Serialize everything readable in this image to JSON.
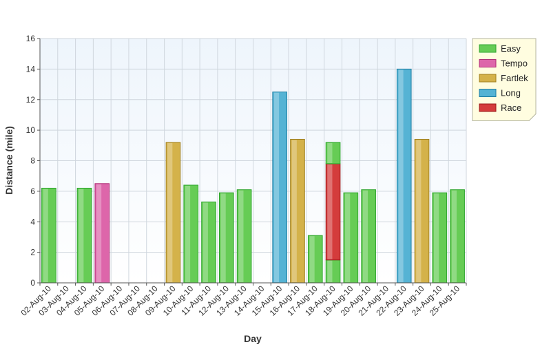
{
  "chart_data": {
    "type": "bar",
    "stacked": true,
    "title": "",
    "xlabel": "Day",
    "ylabel": "Distance (mile)",
    "ylim": [
      0,
      16
    ],
    "yticks": [
      0,
      2,
      4,
      6,
      8,
      10,
      12,
      14,
      16
    ],
    "grid": true,
    "legend_position": "top-right",
    "categories": [
      "02-Aug-10",
      "03-Aug-10",
      "04-Aug-10",
      "05-Aug-10",
      "06-Aug-10",
      "07-Aug-10",
      "08-Aug-10",
      "09-Aug-10",
      "10-Aug-10",
      "11-Aug-10",
      "12-Aug-10",
      "13-Aug-10",
      "14-Aug-10",
      "15-Aug-10",
      "16-Aug-10",
      "17-Aug-10",
      "18-Aug-10",
      "19-Aug-10",
      "20-Aug-10",
      "21-Aug-10",
      "22-Aug-10",
      "23-Aug-10",
      "24-Aug-10",
      "25-Aug-10"
    ],
    "series": [
      {
        "name": "Easy",
        "color": "#66cc55",
        "edge": "#2ea52e",
        "values": [
          6.2,
          0,
          6.2,
          0,
          0,
          0,
          0,
          0,
          6.4,
          5.3,
          5.9,
          6.1,
          0,
          0,
          0,
          3.1,
          1.5,
          5.9,
          6.1,
          0,
          0,
          0,
          5.9,
          6.1
        ]
      },
      {
        "name": "Tempo",
        "color": "#dd66aa",
        "edge": "#b02a75",
        "values": [
          0,
          0,
          0,
          6.5,
          0,
          0,
          0,
          0,
          0,
          0,
          0,
          0,
          0,
          0,
          0,
          0,
          0,
          0,
          0,
          0,
          0,
          0,
          0,
          0
        ]
      },
      {
        "name": "Fartlek",
        "color": "#d4b24a",
        "edge": "#a08020",
        "values": [
          0,
          0,
          0,
          0,
          0,
          0,
          0,
          9.2,
          0,
          0,
          0,
          0,
          0,
          0,
          9.4,
          0,
          0,
          0,
          0,
          0,
          0,
          9.4,
          0,
          0
        ]
      },
      {
        "name": "Long",
        "color": "#55b3d4",
        "edge": "#1f7fa3",
        "values": [
          0,
          0,
          0,
          0,
          0,
          0,
          0,
          0,
          0,
          0,
          0,
          0,
          0,
          12.5,
          0,
          0,
          0,
          0,
          0,
          0,
          14.0,
          0,
          0,
          0
        ]
      },
      {
        "name": "Race",
        "color": "#d43c3c",
        "edge": "#9a1a1a",
        "values": [
          0,
          0,
          0,
          0,
          0,
          0,
          0,
          0,
          0,
          0,
          0,
          0,
          0,
          0,
          0,
          0,
          6.3,
          0,
          0,
          0,
          0,
          0,
          0,
          0
        ]
      },
      {
        "name": "Easy",
        "color": "#66cc55",
        "edge": "#2ea52e",
        "legend": false,
        "values": [
          0,
          0,
          0,
          0,
          0,
          0,
          0,
          0,
          0,
          0,
          0,
          0,
          0,
          0,
          0,
          0,
          1.4,
          0,
          0,
          0,
          0,
          0,
          0,
          0
        ]
      }
    ]
  }
}
